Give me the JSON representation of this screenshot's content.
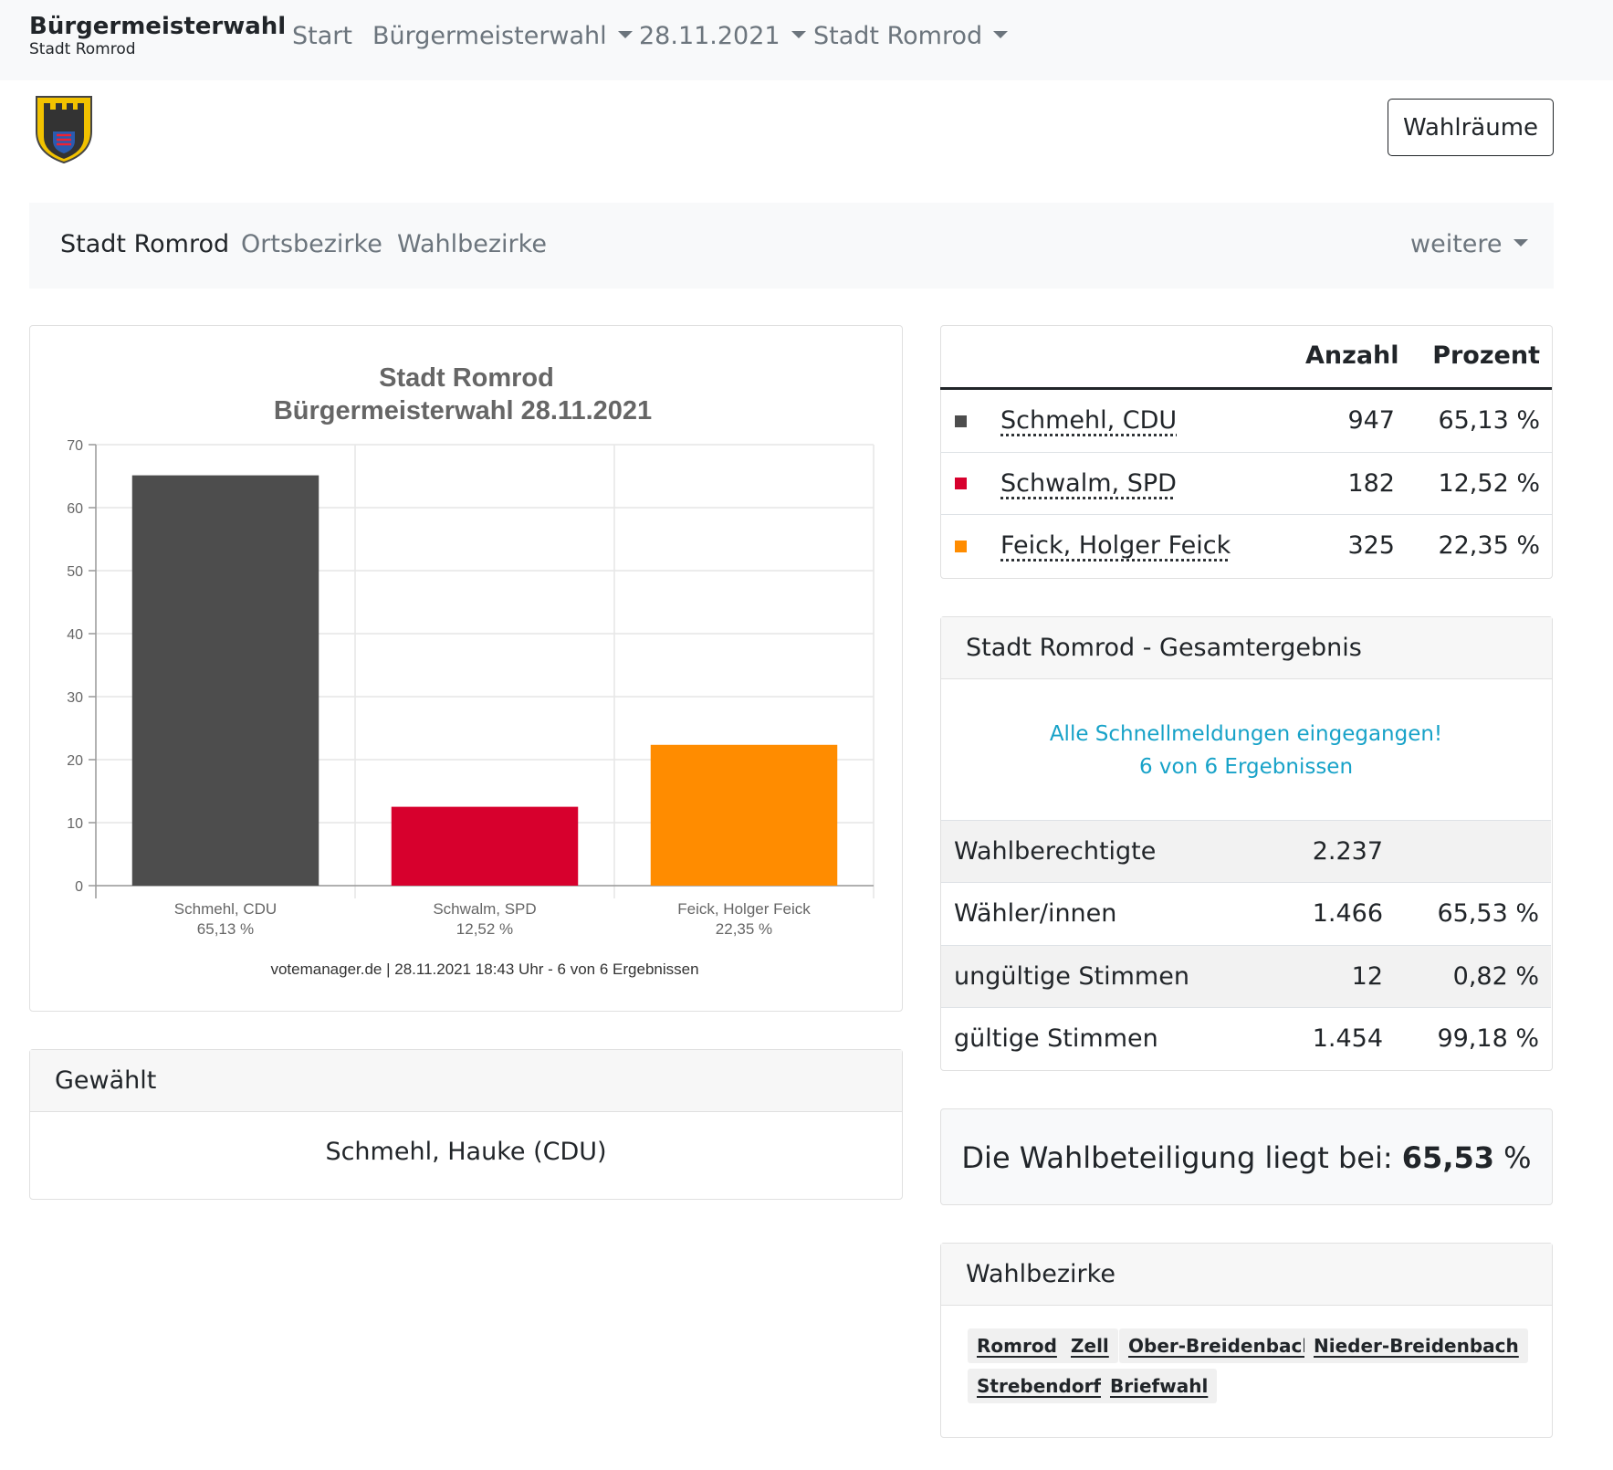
{
  "navbar": {
    "brand_title": "Bürgermeisterwahl",
    "brand_subtitle": "Stadt Romrod",
    "links": [
      "Start",
      "Bürgermeisterwahl",
      "28.11.2021",
      "Stadt Romrod"
    ]
  },
  "header": {
    "button_label": "Wahlräume",
    "crest_icon": "coat-of-arms-icon"
  },
  "subnav": {
    "items": [
      "Stadt Romrod",
      "Ortsbezirke",
      "Wahlbezirke"
    ],
    "more_label": "weitere"
  },
  "chart_data": {
    "type": "bar",
    "title": "Stadt Romrod",
    "subtitle": "Bürgermeisterwahl 28.11.2021",
    "categories": [
      "Schmehl, CDU",
      "Schwalm, SPD",
      "Feick, Holger Feick"
    ],
    "value_labels": [
      "65,13 %",
      "12,52 %",
      "22,35 %"
    ],
    "values": [
      65.13,
      12.52,
      22.35
    ],
    "colors": [
      "#4d4d4d",
      "#d7002d",
      "#ff8c00"
    ],
    "ylim": [
      0,
      70
    ],
    "yticks": [
      0,
      10,
      20,
      30,
      40,
      50,
      60,
      70
    ],
    "grid": true,
    "footer": "votemanager.de | 28.11.2021 18:43 Uhr - 6 von 6 Ergebnissen"
  },
  "gewaehlt": {
    "header": "Gewählt",
    "winner": "Schmehl, Hauke (CDU)"
  },
  "results": {
    "col_count": "Anzahl",
    "col_percent": "Prozent",
    "rows": [
      {
        "name": "Schmehl, CDU",
        "count": "947",
        "percent": "65,13 %",
        "color": "#4d4d4d"
      },
      {
        "name": "Schwalm, SPD",
        "count": "182",
        "percent": "12,52 %",
        "color": "#d7002d"
      },
      {
        "name": "Feick, Holger Feick",
        "count": "325",
        "percent": "22,35 %",
        "color": "#ff8c00"
      }
    ]
  },
  "gesamt": {
    "header": "Stadt Romrod - Gesamtergebnis",
    "status_line1": "Alle Schnellmeldungen eingegangen!",
    "status_line2": "6 von 6 Ergebnissen",
    "rows": [
      {
        "label": "Wahlberechtigte",
        "value": "2.237",
        "percent": ""
      },
      {
        "label": "Wähler/innen",
        "value": "1.466",
        "percent": "65,53 %"
      },
      {
        "label": "ungültige Stimmen",
        "value": "12",
        "percent": "0,82 %"
      },
      {
        "label": "gültige Stimmen",
        "value": "1.454",
        "percent": "99,18 %"
      }
    ]
  },
  "turnout": {
    "prefix": "Die Wahlbeteiligung liegt bei: ",
    "value": "65,53",
    "suffix": " %"
  },
  "wahlbezirke": {
    "header": "Wahlbezirke",
    "items": [
      "Romrod",
      "Zell",
      "Ober-Breidenbach",
      "Nieder-Breidenbach",
      "Strebendorf",
      "Briefwahl"
    ]
  }
}
